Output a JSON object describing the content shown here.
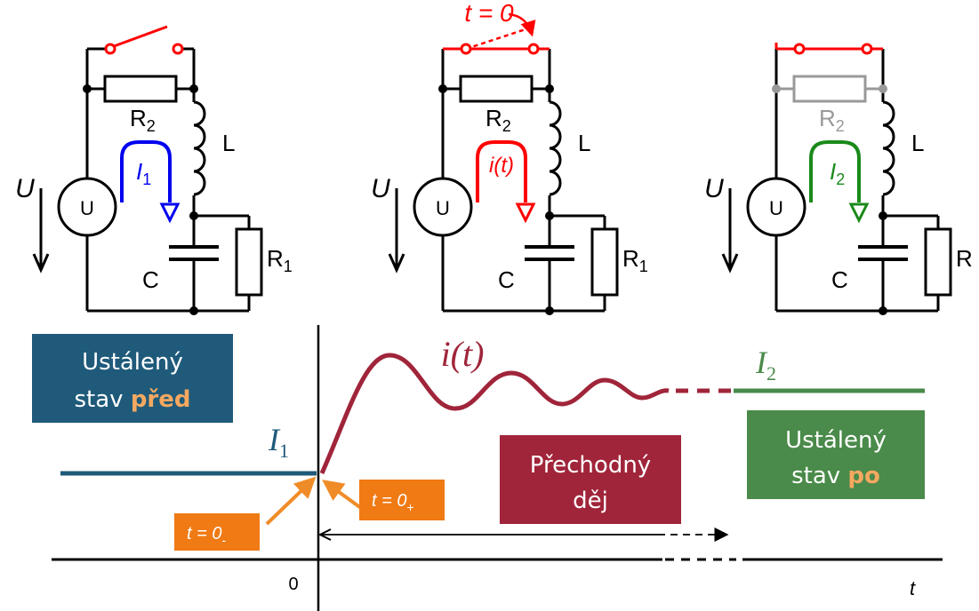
{
  "circuits": [
    {
      "state": "before",
      "color": "#0000ee",
      "voltage_label": "U",
      "source_label": "U",
      "r2_label": "R",
      "r2_sub": "2",
      "l_label": "L",
      "c_label": "C",
      "r1_label": "R",
      "r1_sub": "1",
      "current_label": "I",
      "current_sub": "1"
    },
    {
      "state": "switching",
      "color": "#ff0000",
      "switch_label": "t = 0",
      "voltage_label": "U",
      "source_label": "U",
      "r2_label": "R",
      "r2_sub": "2",
      "l_label": "L",
      "c_label": "C",
      "r1_label": "R",
      "r1_sub": "1",
      "current_label": "i(t)"
    },
    {
      "state": "after",
      "color": "#1a8a1a",
      "voltage_label": "U",
      "source_label": "U",
      "r2_label": "R",
      "r2_sub": "2",
      "l_label": "L",
      "c_label": "C",
      "r1_label": "R",
      "current_label": "I",
      "current_sub": "2"
    }
  ],
  "graph": {
    "origin_label": "0",
    "time_axis_label": "t",
    "current_before_label": "I",
    "current_before_sub": "1",
    "current_transient_label": "i(t)",
    "current_after_label": "I",
    "current_after_sub": "2",
    "t_minus_label": "t = 0",
    "t_minus_sub": "-",
    "t_plus_label": "t = 0",
    "t_plus_sub": "+"
  },
  "boxes": {
    "before": {
      "line1": "Ustálený",
      "line2": "stav ",
      "highlight": "před",
      "color": "#1f5a7a"
    },
    "transient": {
      "line1": "Přechodný",
      "line2": "děj",
      "color": "#a0253a"
    },
    "after": {
      "line1": "Ustálený",
      "line2": "stav ",
      "highlight": "po",
      "color": "#4a8a4a"
    },
    "highlight_color": "#f5a860",
    "tag_color": "#f07a14"
  }
}
